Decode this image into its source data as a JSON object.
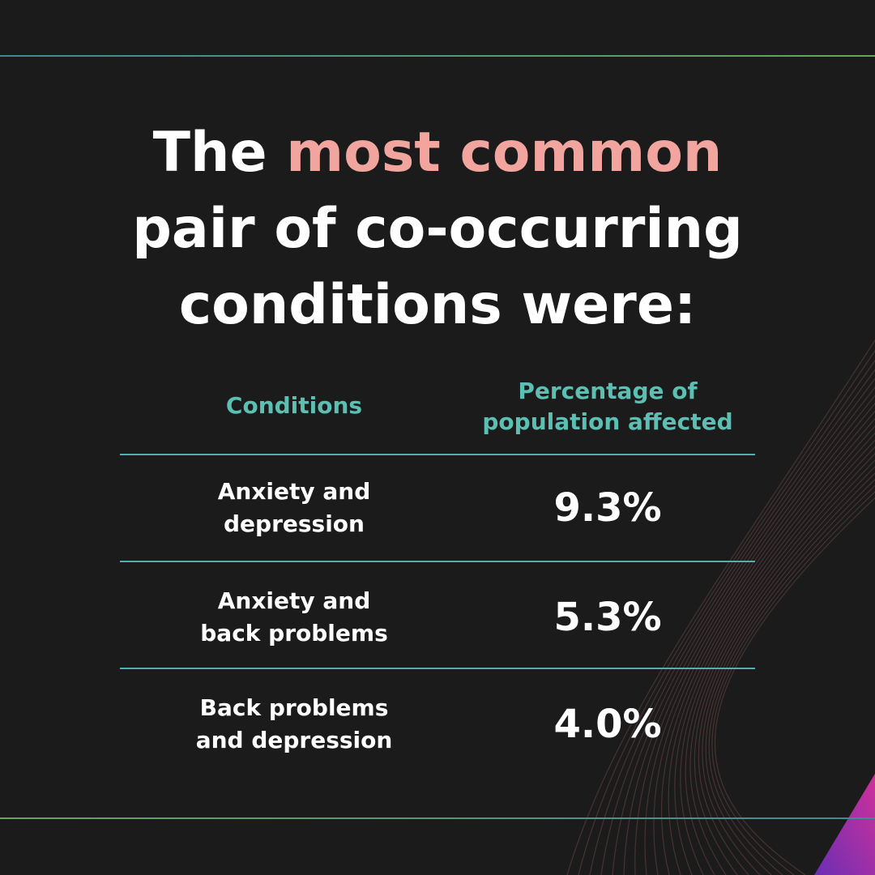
{
  "headline": {
    "prefix": "The ",
    "accent": "most common",
    "line2": "pair of co-occurring",
    "line3": "conditions were:"
  },
  "table": {
    "headers": {
      "conditions": "Conditions",
      "percentage_line1": "Percentage of",
      "percentage_line2": "population affected"
    },
    "rows": [
      {
        "condition_line1": "Anxiety and",
        "condition_line2": "depression",
        "value": "9.3%"
      },
      {
        "condition_line1": "Anxiety and",
        "condition_line2": "back problems",
        "value": "5.3%"
      },
      {
        "condition_line1": "Back problems",
        "condition_line2": "and depression",
        "value": "4.0%"
      }
    ]
  },
  "colors": {
    "background": "#1b1b1b",
    "accent_text": "#f2a59e",
    "header_teal": "#5cbfb3",
    "rule_teal": "#4fb0a8",
    "corner_purple": "#8a2fb0",
    "corner_magenta": "#d0309a"
  }
}
